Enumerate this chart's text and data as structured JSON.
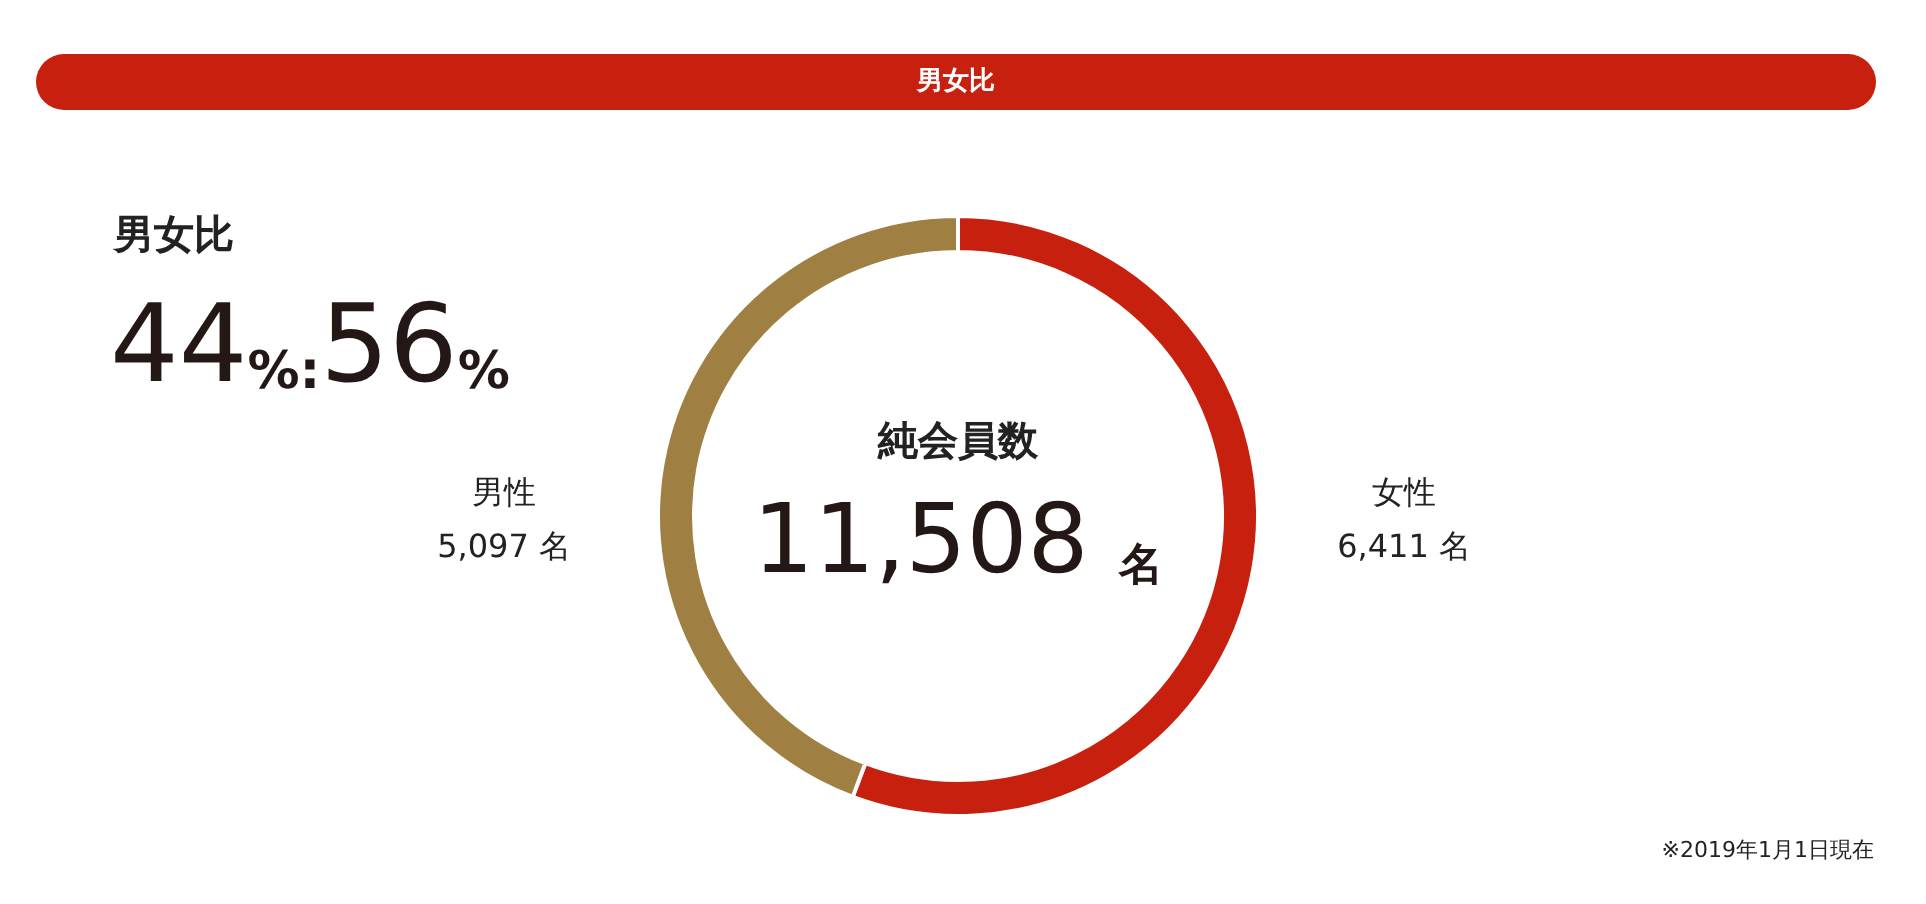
{
  "chart_data": {
    "type": "donut",
    "title": "男女比",
    "categories": [
      "女性",
      "男性"
    ],
    "values": [
      6411,
      5097
    ],
    "colors": [
      "#c8200f",
      "#a07f42"
    ],
    "value_labels": [
      "6,411 名",
      "5,097 名"
    ],
    "annotations": [
      "男女比",
      "44%:56%",
      "純会員数",
      "11,508 名",
      "※2019年1月1日現在"
    ]
  }
}
